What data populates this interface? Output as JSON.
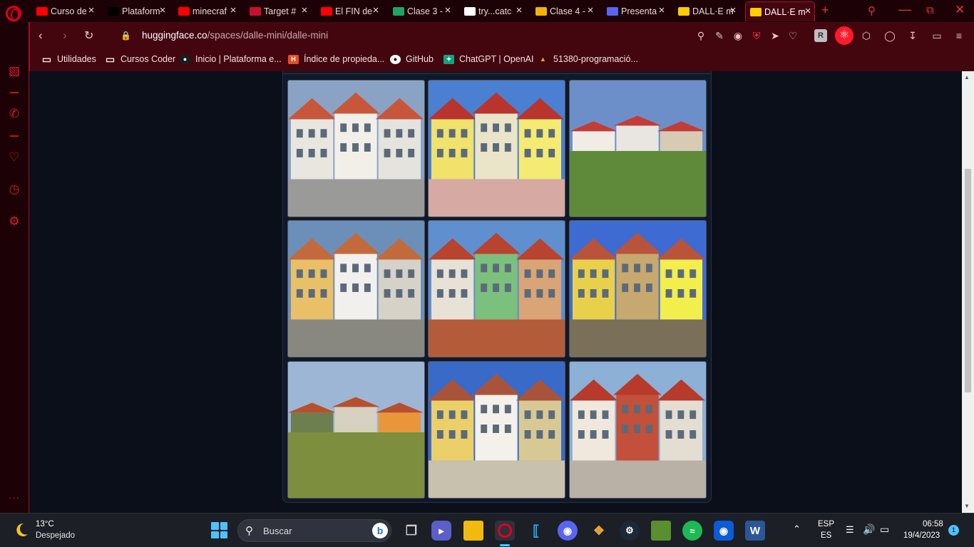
{
  "browser": {
    "tabs": [
      {
        "label": "Curso de",
        "favicon": "youtube-icon",
        "color": "#ff0000",
        "active": false
      },
      {
        "label": "Plataform",
        "favicon": "coderhouse-icon",
        "color": "#000000",
        "active": false
      },
      {
        "label": "minecraf",
        "favicon": "youtube-icon",
        "color": "#ff0000",
        "active": false
      },
      {
        "label": "Target #",
        "favicon": "codepen-x-icon",
        "color": "#c8102e",
        "active": false
      },
      {
        "label": "El FIN de",
        "favicon": "youtube-icon",
        "color": "#ff0000",
        "active": false
      },
      {
        "label": "Clase 3 -",
        "favicon": "google-drive-icon",
        "color": "#1fa463",
        "active": false
      },
      {
        "label": "try...catc",
        "favicon": "mdn-icon",
        "color": "#ffffff",
        "active": false
      },
      {
        "label": "Clase 4 -",
        "favicon": "google-slides-icon",
        "color": "#f4b400",
        "active": false
      },
      {
        "label": "Presenta",
        "favicon": "pitch-icon",
        "color": "#5865f2",
        "active": false
      },
      {
        "label": "DALL·E m",
        "favicon": "huggingface-icon",
        "color": "#ffcc00",
        "active": false
      },
      {
        "label": "DALL·E m",
        "favicon": "huggingface-icon",
        "color": "#ffcc00",
        "active": true
      }
    ],
    "address": {
      "domain": "huggingface.co",
      "path": "/spaces/dalle-mini/dalle-mini"
    },
    "bookmarks": [
      {
        "label": "Utilidades",
        "icon": "folder-icon"
      },
      {
        "label": "Cursos Coder",
        "icon": "folder-icon"
      },
      {
        "label": "Inicio | Plataforma e...",
        "icon": "coderhouse-icon"
      },
      {
        "label": "Índice de propieda...",
        "icon": "html5-icon"
      },
      {
        "label": "GitHub",
        "icon": "github-icon"
      },
      {
        "label": "ChatGPT | OpenAI",
        "icon": "openai-icon"
      },
      {
        "label": "51380-programació...",
        "icon": "google-drive-icon"
      }
    ],
    "accent": "#e0001b"
  },
  "gallery": {
    "images": [
      {
        "subject": "white houses with red roofs by a road",
        "sky": "#8aa3c4"
      },
      {
        "subject": "yellow houses with red roofs",
        "sky": "#4a7fd1"
      },
      {
        "subject": "white and red houses behind green field",
        "sky": "#6d8fc9"
      },
      {
        "subject": "yellow and white houses with orange roofs",
        "sky": "#6b8fb8"
      },
      {
        "subject": "surreal cluster of houses with red roofs",
        "sky": "#5f8fcf"
      },
      {
        "subject": "yellow houses with red roofs",
        "sky": "#3d6bd1"
      },
      {
        "subject": "houses in the distance across a green field",
        "sky": "#9db6d6"
      },
      {
        "subject": "yellow and white townhouses",
        "sky": "#3a6ac8"
      },
      {
        "subject": "white and red houses with red roofs",
        "sky": "#8cb0d6"
      }
    ]
  },
  "taskbar": {
    "weather": {
      "temp": "13°C",
      "condition": "Despejado"
    },
    "search_label": "Buscar",
    "lang": {
      "line1": "ESP",
      "line2": "ES"
    },
    "time": "06:58",
    "date": "19/4/2023",
    "notifications": "1"
  }
}
